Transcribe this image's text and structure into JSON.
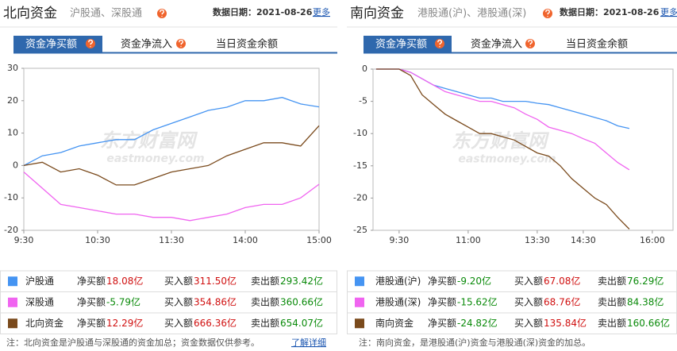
{
  "chart_data": [
    {
      "type": "line",
      "title": "北向资金",
      "watermark": "东方财富网",
      "watermark_sub": "eastmoney.com",
      "x": [
        0,
        15,
        30,
        45,
        60,
        75,
        90,
        105,
        120,
        135,
        150,
        165,
        180,
        195,
        210,
        225,
        240
      ],
      "xlim": [
        0,
        240
      ],
      "xticks": [
        {
          "value": 0,
          "label": "9:30"
        },
        {
          "value": 60,
          "label": "10:30"
        },
        {
          "value": 120,
          "label": "11:30"
        },
        {
          "value": 180,
          "label": "14:00"
        },
        {
          "value": 240,
          "label": "15:00"
        }
      ],
      "ylim": [
        -20,
        30
      ],
      "yticks": [
        -20,
        -10,
        0,
        10,
        20,
        30
      ],
      "series": [
        {
          "name": "沪股通",
          "color": "#4594f2",
          "values": [
            0,
            3,
            4,
            6,
            7,
            8,
            8,
            11,
            13,
            15,
            17,
            18,
            20,
            20,
            21,
            19,
            18.08
          ]
        },
        {
          "name": "深股通",
          "color": "#f064f0",
          "values": [
            -2,
            -7,
            -12,
            -13,
            -14,
            -15,
            -15,
            -16,
            -16,
            -17,
            -16,
            -15,
            -13,
            -12,
            -12,
            -10,
            -5.79
          ]
        },
        {
          "name": "北向资金",
          "color": "#7a4a1c",
          "values": [
            0,
            1,
            -2,
            -1,
            -3,
            -6,
            -6,
            -4,
            -2,
            -1,
            0,
            3,
            5,
            7,
            7,
            6,
            12.29
          ]
        }
      ]
    },
    {
      "type": "line",
      "title": "南向资金",
      "watermark": "东方财富网",
      "watermark_sub": "eastmoney.com",
      "x": [
        -30,
        0,
        15,
        30,
        45,
        60,
        75,
        90,
        105,
        120,
        135,
        150,
        165,
        180,
        195,
        210,
        225,
        240,
        255,
        270,
        285,
        300
      ],
      "xlim": [
        -34,
        357
      ],
      "xticks": [
        {
          "value": 0,
          "label": "9:30"
        },
        {
          "value": 90,
          "label": "11:00"
        },
        {
          "value": 180,
          "label": "13:30"
        },
        {
          "value": 240,
          "label": "14:30"
        },
        {
          "value": 330,
          "label": "16:00"
        }
      ],
      "ylim": [
        -25,
        0
      ],
      "yticks": [
        -25,
        -20,
        -15,
        -10,
        -5,
        0
      ],
      "series": [
        {
          "name": "港股通(沪)",
          "color": "#4594f2",
          "values": [
            0,
            0,
            -0.5,
            -1.5,
            -2.5,
            -3,
            -3.5,
            -4,
            -4.5,
            -4.5,
            -5,
            -5,
            -5,
            -5.3,
            -5.5,
            -6,
            -6.5,
            -7,
            -7.5,
            -8,
            -8.8,
            -9.2
          ]
        },
        {
          "name": "港股通(深)",
          "color": "#f064f0",
          "values": [
            0,
            0,
            -0.5,
            -1.5,
            -2.5,
            -3.5,
            -4,
            -4.5,
            -5,
            -5,
            -5.5,
            -6,
            -7,
            -7.8,
            -9,
            -9.5,
            -10,
            -10.8,
            -11.5,
            -13,
            -14.5,
            -15.62
          ]
        },
        {
          "name": "南向资金",
          "color": "#7a4a1c",
          "values": [
            0,
            0,
            -1,
            -4,
            -5.5,
            -7,
            -8,
            -9,
            -10,
            -10,
            -10.5,
            -11,
            -12,
            -13,
            -13.5,
            -15,
            -17,
            -18.5,
            -20,
            -21,
            -23,
            -24.82
          ]
        }
      ]
    }
  ],
  "panels": [
    {
      "subtitle": "沪股通、深股通",
      "date": "数据日期：2021-08-26",
      "more": "更多",
      "tabs": [
        "资金净买额",
        "资金净流入",
        "当日资金余额"
      ],
      "rows": [
        [
          "净买额",
          "18.08亿",
          "买入额",
          "311.50亿",
          "卖出额",
          "293.42亿"
        ],
        [
          "净买额",
          "-5.79亿",
          "买入额",
          "354.86亿",
          "卖出额",
          "360.66亿"
        ],
        [
          "净买额",
          "12.29亿",
          "买入额",
          "666.36亿",
          "卖出额",
          "654.07亿"
        ]
      ],
      "note": "注：北向资金是沪股通与深股通的资金加总；资金数据仅供参考。",
      "note_link": "了解详细"
    },
    {
      "subtitle": "港股通(沪)、港股通(深)",
      "date": "数据日期：2021-08-26",
      "more": "更多",
      "tabs": [
        "资金净买额",
        "资金净流入",
        "当日资金余额"
      ],
      "rows": [
        [
          "净买额",
          "-9.20亿",
          "买入额",
          "67.08亿",
          "卖出额",
          "76.29亿"
        ],
        [
          "净买额",
          "-15.62亿",
          "买入额",
          "68.76亿",
          "卖出额",
          "84.38亿"
        ],
        [
          "净买额",
          "-24.82亿",
          "买入额",
          "135.84亿",
          "卖出额",
          "160.66亿"
        ]
      ],
      "note": "注：南向资金，是港股通(沪)资金与港股通(深)资金的加总。"
    }
  ]
}
